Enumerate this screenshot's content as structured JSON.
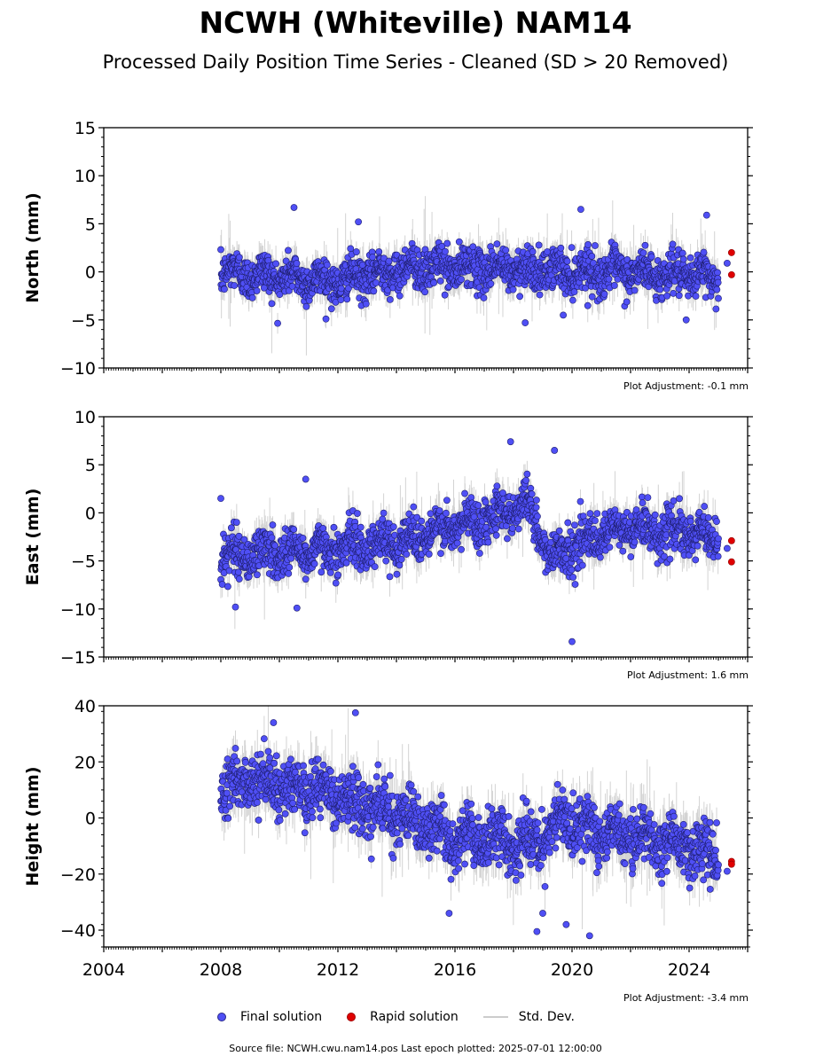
{
  "header": {
    "title": "NCWH (Whiteville) NAM14",
    "subtitle": "Processed Daily Position Time Series - Cleaned (SD > 20 Removed)"
  },
  "colors": {
    "final": "#4f4ff5",
    "rapid": "#e00000",
    "stddev": "#cccccc"
  },
  "legend": {
    "final": "Final solution",
    "rapid": "Rapid solution",
    "stddev": "Std. Dev."
  },
  "footer": {
    "text": "Source file: NCWH.cwu.nam14.pos  Last epoch plotted: 2025-07-01 12:00:00"
  },
  "chart_data": [
    {
      "type": "scatter",
      "ylabel": "North (mm)",
      "ylim": [
        -10,
        15
      ],
      "yticks": [
        -10,
        -5,
        0,
        5,
        10,
        15
      ],
      "xlim": [
        2004,
        2026
      ],
      "xticks": [
        2004,
        2008,
        2012,
        2016,
        2020,
        2024
      ],
      "show_xtick_labels": false,
      "adjustment": "Plot Adjustment: -0.1 mm",
      "final_range": [
        2008.0,
        2025.0
      ],
      "final_trend": [
        [
          2008,
          0
        ],
        [
          2012,
          -1
        ],
        [
          2014.5,
          0.5
        ],
        [
          2018,
          0.3
        ],
        [
          2020,
          0
        ],
        [
          2021.5,
          0
        ],
        [
          2025,
          -0.5
        ]
      ],
      "final_noise": 1.4,
      "final_outliers": [
        {
          "x": 2010.5,
          "y": 6.7
        },
        {
          "x": 2020.3,
          "y": 6.5
        },
        {
          "x": 2024.6,
          "y": 5.9
        },
        {
          "x": 2018.4,
          "y": -5.3
        },
        {
          "x": 2023.9,
          "y": -5.0
        },
        {
          "x": 2012.7,
          "y": 5.2
        },
        {
          "x": 2019.7,
          "y": -4.5
        }
      ],
      "final_late": [
        {
          "x": 2025.3,
          "y": 0.9
        }
      ],
      "rapid": [
        {
          "x": 2025.45,
          "y": 2.0
        },
        {
          "x": 2025.45,
          "y": -0.3
        }
      ],
      "series": [
        {
          "name": "Final solution"
        },
        {
          "name": "Rapid solution"
        },
        {
          "name": "Std. Dev."
        }
      ]
    },
    {
      "type": "scatter",
      "ylabel": "East (mm)",
      "ylim": [
        -15,
        10
      ],
      "yticks": [
        -15,
        -10,
        -5,
        0,
        5,
        10
      ],
      "xlim": [
        2004,
        2026
      ],
      "xticks": [
        2004,
        2008,
        2012,
        2016,
        2020,
        2024
      ],
      "show_xtick_labels": false,
      "adjustment": "Plot Adjustment: 1.6 mm",
      "final_range": [
        2008.0,
        2025.0
      ],
      "final_trend": [
        [
          2008,
          -4.5
        ],
        [
          2011,
          -4
        ],
        [
          2014,
          -3
        ],
        [
          2016,
          -1.5
        ],
        [
          2018.5,
          1
        ],
        [
          2019.2,
          -4.5
        ],
        [
          2020.5,
          -3
        ],
        [
          2022,
          -1.5
        ],
        [
          2025,
          -2.5
        ]
      ],
      "final_noise": 1.5,
      "final_outliers": [
        {
          "x": 2017.9,
          "y": 7.4
        },
        {
          "x": 2019.4,
          "y": 6.5
        },
        {
          "x": 2020.0,
          "y": -13.4
        },
        {
          "x": 2010.9,
          "y": 3.5
        },
        {
          "x": 2008.0,
          "y": 1.5
        },
        {
          "x": 2008.5,
          "y": -9.8
        },
        {
          "x": 2010.6,
          "y": -9.9
        }
      ],
      "final_late": [
        {
          "x": 2025.3,
          "y": -3.7
        }
      ],
      "rapid": [
        {
          "x": 2025.45,
          "y": -2.9
        },
        {
          "x": 2025.45,
          "y": -5.1
        }
      ],
      "series": [
        {
          "name": "Final solution"
        },
        {
          "name": "Rapid solution"
        },
        {
          "name": "Std. Dev."
        }
      ]
    },
    {
      "type": "scatter",
      "ylabel": "Height (mm)",
      "ylim": [
        -46,
        40
      ],
      "yticks": [
        -40,
        -20,
        0,
        20,
        40
      ],
      "xlim": [
        2004,
        2026
      ],
      "xticks": [
        2004,
        2008,
        2012,
        2016,
        2020,
        2024
      ],
      "show_xtick_labels": true,
      "adjustment": "Plot Adjustment: -3.4 mm",
      "final_range": [
        2008.0,
        2025.0
      ],
      "final_trend": [
        [
          2008,
          10
        ],
        [
          2009,
          14
        ],
        [
          2012,
          8
        ],
        [
          2014,
          1
        ],
        [
          2016,
          -7
        ],
        [
          2019,
          -10
        ],
        [
          2019.5,
          0
        ],
        [
          2021,
          -5
        ],
        [
          2024,
          -10
        ],
        [
          2025,
          -14
        ]
      ],
      "final_noise": 6.5,
      "final_outliers": [
        {
          "x": 2012.6,
          "y": 37.5
        },
        {
          "x": 2009.8,
          "y": 34.0
        },
        {
          "x": 2020.6,
          "y": -42.0
        },
        {
          "x": 2018.8,
          "y": -40.5
        },
        {
          "x": 2019.8,
          "y": -38.0
        },
        {
          "x": 2015.8,
          "y": -34.0
        },
        {
          "x": 2019.0,
          "y": -34.0
        }
      ],
      "final_late": [
        {
          "x": 2025.3,
          "y": -19.0
        }
      ],
      "rapid": [
        {
          "x": 2025.45,
          "y": -15.5
        },
        {
          "x": 2025.45,
          "y": -16.5
        }
      ],
      "series": [
        {
          "name": "Final solution"
        },
        {
          "name": "Rapid solution"
        },
        {
          "name": "Std. Dev."
        }
      ]
    }
  ]
}
